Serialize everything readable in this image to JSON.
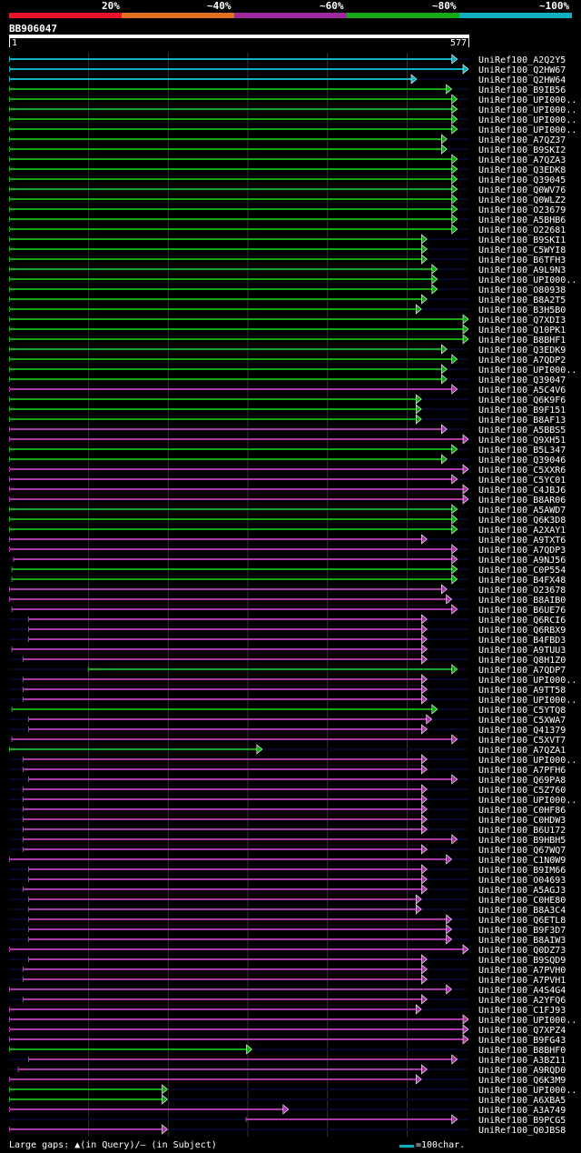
{
  "legend": {
    "labels": [
      "20%",
      "~40%",
      "~60%",
      "~80%",
      "~100%"
    ],
    "colors": [
      "#e8142c",
      "#e07020",
      "#9c2a9c",
      "#14a814",
      "#10b0c0"
    ]
  },
  "query": {
    "id": "BB906047",
    "start": "1",
    "end": "577",
    "length": 577
  },
  "chart_data": {
    "type": "alignment-overview",
    "query_length": 577,
    "color_scale": [
      {
        "label": "20%",
        "color": "#e8142c"
      },
      {
        "label": "~40%",
        "color": "#e07020"
      },
      {
        "label": "~60%",
        "color": "#9c2a9c"
      },
      {
        "label": "~80%",
        "color": "#14a814"
      },
      {
        "label": "~100%",
        "color": "#10b0c0"
      }
    ],
    "hits": [
      {
        "name": "UniRef100_A2Q2Y5",
        "start": 1,
        "end": 563,
        "class": "c"
      },
      {
        "name": "UniRef100_Q2HW67",
        "start": 1,
        "end": 577,
        "class": "c"
      },
      {
        "name": "UniRef100_Q2HW64",
        "start": 1,
        "end": 512,
        "class": "c"
      },
      {
        "name": "UniRef100_B9IB56",
        "start": 1,
        "end": 556,
        "class": "g"
      },
      {
        "name": "UniRef100_UPI000..",
        "start": 1,
        "end": 563,
        "class": "g"
      },
      {
        "name": "UniRef100_UPI000..",
        "start": 1,
        "end": 563,
        "class": "g"
      },
      {
        "name": "UniRef100_UPI000..",
        "start": 1,
        "end": 563,
        "class": "g"
      },
      {
        "name": "UniRef100_UPI000..",
        "start": 1,
        "end": 563,
        "class": "g"
      },
      {
        "name": "UniRef100_A7QZ37",
        "start": 1,
        "end": 550,
        "class": "g"
      },
      {
        "name": "UniRef100_B9SKI2",
        "start": 1,
        "end": 550,
        "class": "g"
      },
      {
        "name": "UniRef100_A7QZA3",
        "start": 1,
        "end": 563,
        "class": "g"
      },
      {
        "name": "UniRef100_Q3EDK8",
        "start": 1,
        "end": 563,
        "class": "g"
      },
      {
        "name": "UniRef100_Q39045",
        "start": 1,
        "end": 563,
        "class": "g"
      },
      {
        "name": "UniRef100_Q0WV76",
        "start": 1,
        "end": 563,
        "class": "g"
      },
      {
        "name": "UniRef100_Q0WLZ2",
        "start": 1,
        "end": 563,
        "class": "g"
      },
      {
        "name": "UniRef100_O23679",
        "start": 1,
        "end": 563,
        "class": "g"
      },
      {
        "name": "UniRef100_A5BHB6",
        "start": 1,
        "end": 563,
        "class": "g"
      },
      {
        "name": "UniRef100_O22681",
        "start": 1,
        "end": 563,
        "class": "g"
      },
      {
        "name": "UniRef100_B9SKI1",
        "start": 1,
        "end": 525,
        "class": "g"
      },
      {
        "name": "UniRef100_C5WYI8",
        "start": 1,
        "end": 525,
        "class": "g"
      },
      {
        "name": "UniRef100_B6TFH3",
        "start": 1,
        "end": 525,
        "class": "g"
      },
      {
        "name": "UniRef100_A9L9N3",
        "start": 1,
        "end": 538,
        "class": "g"
      },
      {
        "name": "UniRef100_UPI000..",
        "start": 1,
        "end": 538,
        "class": "g"
      },
      {
        "name": "UniRef100_O80938",
        "start": 1,
        "end": 538,
        "class": "g"
      },
      {
        "name": "UniRef100_B8A2T5",
        "start": 1,
        "end": 525,
        "class": "g"
      },
      {
        "name": "UniRef100_B3H5B0",
        "start": 1,
        "end": 518,
        "class": "g"
      },
      {
        "name": "UniRef100_Q7XDI3",
        "start": 1,
        "end": 577,
        "class": "g"
      },
      {
        "name": "UniRef100_Q10PK1",
        "start": 1,
        "end": 577,
        "class": "g"
      },
      {
        "name": "UniRef100_B8BHF1",
        "start": 1,
        "end": 577,
        "class": "g"
      },
      {
        "name": "UniRef100_Q3EDK9",
        "start": 1,
        "end": 550,
        "class": "g"
      },
      {
        "name": "UniRef100_A7QDP2",
        "start": 1,
        "end": 563,
        "class": "g"
      },
      {
        "name": "UniRef100_UPI000..",
        "start": 1,
        "end": 550,
        "class": "g"
      },
      {
        "name": "UniRef100_Q39047",
        "start": 1,
        "end": 550,
        "class": "g"
      },
      {
        "name": "UniRef100_A5C4V6",
        "start": 1,
        "end": 563,
        "class": "p"
      },
      {
        "name": "UniRef100_Q6K9F6",
        "start": 1,
        "end": 518,
        "class": "g"
      },
      {
        "name": "UniRef100_B9F151",
        "start": 1,
        "end": 518,
        "class": "g"
      },
      {
        "name": "UniRef100_B8AF13",
        "start": 1,
        "end": 518,
        "class": "g"
      },
      {
        "name": "UniRef100_A5BBS5",
        "start": 1,
        "end": 550,
        "class": "p"
      },
      {
        "name": "UniRef100_Q9XH51",
        "start": 1,
        "end": 577,
        "class": "p"
      },
      {
        "name": "UniRef100_B5L347",
        "start": 1,
        "end": 563,
        "class": "g"
      },
      {
        "name": "UniRef100_Q39046",
        "start": 1,
        "end": 550,
        "class": "g"
      },
      {
        "name": "UniRef100_C5XXR6",
        "start": 1,
        "end": 577,
        "class": "p"
      },
      {
        "name": "UniRef100_C5YC01",
        "start": 1,
        "end": 563,
        "class": "p"
      },
      {
        "name": "UniRef100_C4JBJ6",
        "start": 1,
        "end": 577,
        "class": "p"
      },
      {
        "name": "UniRef100_B8AR06",
        "start": 1,
        "end": 577,
        "class": "p"
      },
      {
        "name": "UniRef100_A5AWD7",
        "start": 1,
        "end": 563,
        "class": "g"
      },
      {
        "name": "UniRef100_Q6K3D8",
        "start": 1,
        "end": 563,
        "class": "g"
      },
      {
        "name": "UniRef100_A2XAY1",
        "start": 1,
        "end": 563,
        "class": "g"
      },
      {
        "name": "UniRef100_A9TXT6",
        "start": 1,
        "end": 525,
        "class": "p"
      },
      {
        "name": "UniRef100_A7QDP3",
        "start": 1,
        "end": 563,
        "class": "p"
      },
      {
        "name": "UniRef100_A9NJ56",
        "start": 6,
        "end": 563,
        "class": "p"
      },
      {
        "name": "UniRef100_C0P554",
        "start": 4,
        "end": 563,
        "class": "g"
      },
      {
        "name": "UniRef100_B4FX48",
        "start": 4,
        "end": 563,
        "class": "g"
      },
      {
        "name": "UniRef100_O23678",
        "start": 1,
        "end": 550,
        "class": "p"
      },
      {
        "name": "UniRef100_B8AIB0",
        "start": 1,
        "end": 556,
        "class": "p"
      },
      {
        "name": "UniRef100_B6UE76",
        "start": 4,
        "end": 563,
        "class": "p"
      },
      {
        "name": "UniRef100_Q6RCI6",
        "start": 25,
        "end": 525,
        "class": "p"
      },
      {
        "name": "UniRef100_Q6RBX9",
        "start": 25,
        "end": 525,
        "class": "p"
      },
      {
        "name": "UniRef100_B4FBD3",
        "start": 25,
        "end": 525,
        "class": "p"
      },
      {
        "name": "UniRef100_A9TUU3",
        "start": 4,
        "end": 525,
        "class": "p"
      },
      {
        "name": "UniRef100_Q8H1Z0",
        "start": 18,
        "end": 525,
        "class": "p"
      },
      {
        "name": "UniRef100_A7QDP7",
        "start": 100,
        "end": 563,
        "class": "g"
      },
      {
        "name": "UniRef100_UPI000..",
        "start": 18,
        "end": 525,
        "class": "p"
      },
      {
        "name": "UniRef100_A9TT58",
        "start": 18,
        "end": 525,
        "class": "p"
      },
      {
        "name": "UniRef100_UPI000..",
        "start": 18,
        "end": 525,
        "class": "p"
      },
      {
        "name": "UniRef100_C5YTQ8",
        "start": 4,
        "end": 538,
        "class": "g"
      },
      {
        "name": "UniRef100_C5XWA7",
        "start": 25,
        "end": 531,
        "class": "p"
      },
      {
        "name": "UniRef100_Q41379",
        "start": 25,
        "end": 525,
        "class": "p"
      },
      {
        "name": "UniRef100_C5XVT7",
        "start": 4,
        "end": 563,
        "class": "p"
      },
      {
        "name": "UniRef100_A7QZA1",
        "start": 1,
        "end": 318,
        "class": "g"
      },
      {
        "name": "UniRef100_UPI000..",
        "start": 18,
        "end": 525,
        "class": "p"
      },
      {
        "name": "UniRef100_A7PFH6",
        "start": 18,
        "end": 525,
        "class": "p"
      },
      {
        "name": "UniRef100_Q69PA8",
        "start": 25,
        "end": 563,
        "class": "p"
      },
      {
        "name": "UniRef100_C5Z760",
        "start": 18,
        "end": 525,
        "class": "p"
      },
      {
        "name": "UniRef100_UPI000..",
        "start": 18,
        "end": 525,
        "class": "p"
      },
      {
        "name": "UniRef100_C0HF86",
        "start": 18,
        "end": 525,
        "class": "p"
      },
      {
        "name": "UniRef100_C0HDW3",
        "start": 18,
        "end": 525,
        "class": "p"
      },
      {
        "name": "UniRef100_B6U172",
        "start": 18,
        "end": 525,
        "class": "p"
      },
      {
        "name": "UniRef100_B9HBH5",
        "start": 18,
        "end": 563,
        "class": "p"
      },
      {
        "name": "UniRef100_Q67WQ7",
        "start": 18,
        "end": 525,
        "class": "p"
      },
      {
        "name": "UniRef100_C1N0W9",
        "start": 1,
        "end": 556,
        "class": "p"
      },
      {
        "name": "UniRef100_B9IM66",
        "start": 25,
        "end": 525,
        "class": "p"
      },
      {
        "name": "UniRef100_O04693",
        "start": 25,
        "end": 525,
        "class": "p"
      },
      {
        "name": "UniRef100_A5AGJ3",
        "start": 18,
        "end": 525,
        "class": "p"
      },
      {
        "name": "UniRef100_C0HE80",
        "start": 25,
        "end": 518,
        "class": "p"
      },
      {
        "name": "UniRef100_B8A3C4",
        "start": 25,
        "end": 518,
        "class": "p"
      },
      {
        "name": "UniRef100_Q6ETL8",
        "start": 25,
        "end": 556,
        "class": "p"
      },
      {
        "name": "UniRef100_B9F3D7",
        "start": 25,
        "end": 556,
        "class": "p"
      },
      {
        "name": "UniRef100_B8AIW3",
        "start": 25,
        "end": 556,
        "class": "p"
      },
      {
        "name": "UniRef100_Q0DZ73",
        "start": 1,
        "end": 577,
        "class": "p"
      },
      {
        "name": "UniRef100_B9SQD9",
        "start": 25,
        "end": 525,
        "class": "p"
      },
      {
        "name": "UniRef100_A7PVH0",
        "start": 18,
        "end": 525,
        "class": "p"
      },
      {
        "name": "UniRef100_A7PVH1",
        "start": 18,
        "end": 525,
        "class": "p"
      },
      {
        "name": "UniRef100_A4S4G4",
        "start": 1,
        "end": 556,
        "class": "p"
      },
      {
        "name": "UniRef100_A2YFQ6",
        "start": 18,
        "end": 525,
        "class": "p"
      },
      {
        "name": "UniRef100_C1FJ93",
        "start": 1,
        "end": 518,
        "class": "p"
      },
      {
        "name": "UniRef100_UPI000..",
        "start": 1,
        "end": 577,
        "class": "p"
      },
      {
        "name": "UniRef100_Q7XPZ4",
        "start": 1,
        "end": 577,
        "class": "p"
      },
      {
        "name": "UniRef100_B9FG43",
        "start": 1,
        "end": 577,
        "class": "p"
      },
      {
        "name": "UniRef100_B8BHF0",
        "start": 1,
        "end": 305,
        "class": "g"
      },
      {
        "name": "UniRef100_A3BZ11",
        "start": 25,
        "end": 563,
        "class": "p"
      },
      {
        "name": "UniRef100_A9RQD0",
        "start": 12,
        "end": 525,
        "class": "p"
      },
      {
        "name": "UniRef100_Q6K3M9",
        "start": 1,
        "end": 518,
        "class": "p"
      },
      {
        "name": "UniRef100_UPI000..",
        "start": 1,
        "end": 199,
        "class": "g"
      },
      {
        "name": "UniRef100_A6XBA5",
        "start": 1,
        "end": 199,
        "class": "g"
      },
      {
        "name": "UniRef100_A3A749",
        "start": 1,
        "end": 351,
        "class": "p"
      },
      {
        "name": "UniRef100_B9PCG5",
        "start": 298,
        "end": 563,
        "class": "p"
      },
      {
        "name": "UniRef100_Q0JBS8",
        "start": 1,
        "end": 199,
        "class": "p"
      }
    ]
  },
  "footer": {
    "gaps_label": "Large gaps: ▲(in Query)/– (in Subject)",
    "scale_label": "=100char."
  }
}
